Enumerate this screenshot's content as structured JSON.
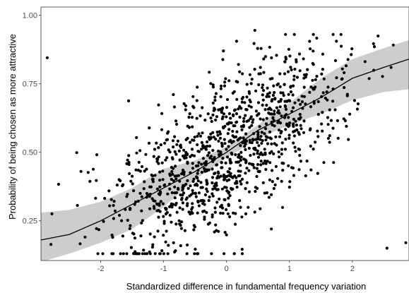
{
  "chart_data": {
    "type": "scatter",
    "title": "",
    "xlabel": "Standardized difference in fundamental frequency variation",
    "ylabel": "Probability of being chosen as more attractive",
    "xlim": [
      -2.95,
      2.9
    ],
    "ylim": [
      0.105,
      1.03
    ],
    "xticks": [
      -2,
      -1,
      0,
      1,
      2
    ],
    "xtick_labels": [
      "-2",
      "-1",
      "0",
      "1",
      "2"
    ],
    "yticks": [
      0.25,
      0.5,
      0.75,
      1.0
    ],
    "ytick_labels": [
      "0.25",
      "0.50",
      "0.75",
      "1.00"
    ],
    "grid": false,
    "legend": "none",
    "fit": {
      "type": "logistic",
      "intercept": 0.02,
      "slope": 0.57,
      "x": [
        -2.95,
        -2.5,
        -2.0,
        -1.5,
        -1.0,
        -0.5,
        0.0,
        0.5,
        1.0,
        1.5,
        2.0,
        2.5,
        2.9
      ],
      "y": [
        0.18,
        0.2,
        0.25,
        0.31,
        0.37,
        0.43,
        0.5,
        0.58,
        0.64,
        0.7,
        0.77,
        0.81,
        0.84
      ],
      "ci_lower": [
        0.1,
        0.13,
        0.17,
        0.22,
        0.3,
        0.4,
        0.48,
        0.55,
        0.6,
        0.64,
        0.69,
        0.72,
        0.73
      ],
      "ci_upper": [
        0.28,
        0.29,
        0.32,
        0.37,
        0.44,
        0.47,
        0.52,
        0.6,
        0.68,
        0.77,
        0.84,
        0.88,
        0.91
      ],
      "line_color": "#000000",
      "band_color": "#c8c8c8"
    },
    "points": {
      "n": 1100,
      "seed": 20240,
      "x_sd": 0.95,
      "y_noise_sd": 0.135,
      "color": "#000000",
      "marked": [
        {
          "x": 0.45,
          "y": 0.945
        },
        {
          "x": 1.32,
          "y": 0.905
        },
        {
          "x": -2.85,
          "y": 0.845
        },
        {
          "x": -0.05,
          "y": 0.87
        },
        {
          "x": 2.55,
          "y": 0.15
        },
        {
          "x": 2.85,
          "y": 0.17
        }
      ]
    }
  }
}
